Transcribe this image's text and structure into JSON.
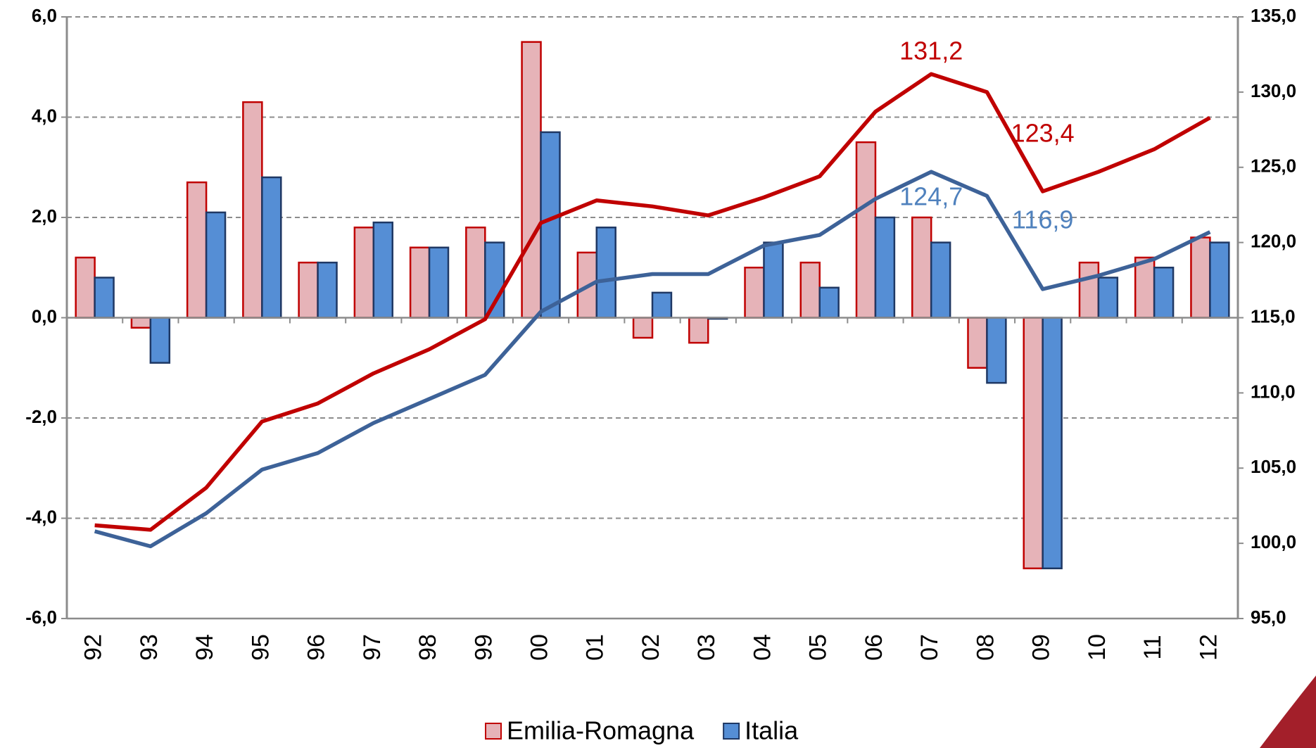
{
  "chart_data": {
    "type": "bar",
    "categories": [
      "92",
      "93",
      "94",
      "95",
      "96",
      "97",
      "98",
      "99",
      "00",
      "01",
      "02",
      "03",
      "04",
      "05",
      "06",
      "07",
      "08",
      "09",
      "10",
      "11",
      "12"
    ],
    "ylim": [
      -6,
      6
    ],
    "yticks": [
      {
        "value": -6,
        "label": "-6,0"
      },
      {
        "value": -4,
        "label": "-4,0"
      },
      {
        "value": -2,
        "label": "-2,0"
      },
      {
        "value": 0,
        "label": "0,0"
      },
      {
        "value": 2,
        "label": "2,0"
      },
      {
        "value": 4,
        "label": "4,0"
      },
      {
        "value": 6,
        "label": "6,0"
      }
    ],
    "y2lim": [
      95,
      135
    ],
    "y2ticks": [
      {
        "value": 95,
        "label": "95,0"
      },
      {
        "value": 100,
        "label": "100,0"
      },
      {
        "value": 105,
        "label": "105,0"
      },
      {
        "value": 110,
        "label": "110,0"
      },
      {
        "value": 115,
        "label": "115,0"
      },
      {
        "value": 120,
        "label": "120,0"
      },
      {
        "value": 125,
        "label": "125,0"
      },
      {
        "value": 130,
        "label": "130,0"
      },
      {
        "value": 135,
        "label": "135,0"
      }
    ],
    "grid": true,
    "series": [
      {
        "name": "Emilia-Romagna",
        "type": "bar",
        "color": "#e6b3b8",
        "edge_color": "#c00000",
        "values": [
          1.2,
          -0.2,
          2.7,
          4.3,
          1.1,
          1.8,
          1.4,
          1.8,
          5.5,
          1.3,
          -0.4,
          -0.5,
          1.0,
          1.1,
          3.5,
          2.0,
          -1.0,
          -5.0,
          1.1,
          1.2,
          1.6
        ]
      },
      {
        "name": "Italia",
        "type": "bar",
        "color": "#558ed5",
        "edge_color": "#1f3864",
        "values": [
          0.8,
          -0.9,
          2.1,
          2.8,
          1.1,
          1.9,
          1.4,
          1.5,
          3.7,
          1.8,
          0.5,
          0.0,
          1.5,
          0.6,
          2.0,
          1.5,
          -1.3,
          -5.0,
          0.8,
          1.0,
          1.5
        ]
      },
      {
        "type": "line",
        "axis": "y2",
        "color": "#c00000",
        "label_color": "#c00000",
        "values": [
          101.2,
          100.9,
          103.7,
          108.1,
          109.3,
          111.3,
          112.9,
          114.9,
          121.3,
          122.8,
          122.4,
          121.8,
          123.0,
          124.4,
          128.7,
          131.2,
          130.0,
          123.4,
          124.7,
          126.2,
          128.3
        ],
        "value_labels": [
          null,
          null,
          null,
          null,
          null,
          null,
          null,
          null,
          null,
          null,
          null,
          null,
          null,
          null,
          null,
          "131,2",
          null,
          "123,4",
          null,
          null,
          null
        ]
      },
      {
        "type": "line",
        "axis": "y2",
        "color": "#3d6298",
        "label_color": "#4f81bd",
        "values": [
          100.8,
          99.8,
          102.0,
          104.9,
          106.0,
          108.0,
          109.6,
          111.2,
          115.4,
          117.4,
          117.9,
          117.9,
          119.8,
          120.5,
          122.9,
          124.7,
          123.1,
          116.9,
          117.8,
          118.9,
          120.7
        ],
        "value_labels": [
          null,
          null,
          null,
          null,
          null,
          null,
          null,
          null,
          null,
          null,
          null,
          null,
          null,
          null,
          null,
          "124,7",
          null,
          "116,9",
          null,
          null,
          null
        ]
      }
    ]
  }
}
